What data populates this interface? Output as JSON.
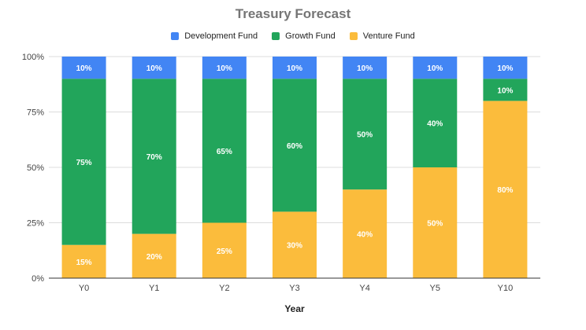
{
  "chart_data": {
    "type": "bar",
    "stacked": true,
    "percent": true,
    "title": "Treasury Forecast",
    "xlabel": "Year",
    "ylabel": "",
    "categories": [
      "Y0",
      "Y1",
      "Y2",
      "Y3",
      "Y4",
      "Y5",
      "Y10"
    ],
    "ylim": [
      0,
      100
    ],
    "yticks": [
      "0%",
      "25%",
      "50%",
      "75%",
      "100%"
    ],
    "grid": true,
    "legend_position": "top",
    "series": [
      {
        "name": "Development Fund",
        "color": "#4285F4",
        "values": [
          10,
          10,
          10,
          10,
          10,
          10,
          10
        ]
      },
      {
        "name": "Growth Fund",
        "color": "#22A55B",
        "values": [
          75,
          70,
          65,
          60,
          50,
          40,
          10
        ]
      },
      {
        "name": "Venture Fund",
        "color": "#FBBC3C",
        "values": [
          15,
          20,
          25,
          30,
          40,
          50,
          80
        ]
      }
    ]
  }
}
